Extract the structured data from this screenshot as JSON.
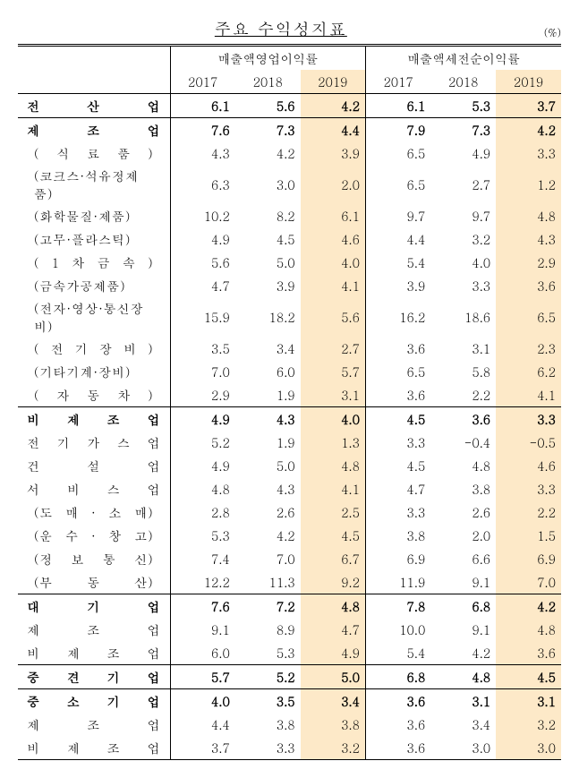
{
  "title": "주요 수익성지표",
  "unit": "(%)",
  "groupHeaders": [
    "매출액영업이익률",
    "매출액세전순이익률"
  ],
  "years": [
    "2017",
    "2018",
    "2019",
    "2017",
    "2018",
    "2019"
  ],
  "rows": [
    {
      "label": "전 산 업",
      "v": [
        "6.1",
        "5.6",
        "4.2",
        "6.1",
        "5.3",
        "3.7"
      ],
      "bold": true,
      "sec": true
    },
    {
      "label": "제 조 업",
      "v": [
        "7.6",
        "7.3",
        "4.4",
        "7.9",
        "7.3",
        "4.2"
      ],
      "bold": true,
      "sec": true
    },
    {
      "label": "( 식 료 품 )",
      "v": [
        "4.3",
        "4.2",
        "3.9",
        "6.5",
        "4.9",
        "3.3"
      ],
      "sub": true
    },
    {
      "label": "(코크스·석유정제품)",
      "v": [
        "6.3",
        "3.0",
        "2.0",
        "6.5",
        "2.7",
        "1.2"
      ],
      "sub": true
    },
    {
      "label": "(화학물질·제품)",
      "v": [
        "10.2",
        "8.2",
        "6.1",
        "9.7",
        "9.7",
        "4.8"
      ],
      "sub": true
    },
    {
      "label": "(고무·플라스틱)",
      "v": [
        "4.9",
        "4.5",
        "4.6",
        "4.4",
        "3.2",
        "4.3"
      ],
      "sub": true
    },
    {
      "label": "( 1 차 금 속 )",
      "v": [
        "5.6",
        "5.0",
        "4.0",
        "5.4",
        "4.0",
        "2.9"
      ],
      "sub": true
    },
    {
      "label": "(금속가공제품)",
      "v": [
        "4.7",
        "3.9",
        "4.1",
        "3.9",
        "3.3",
        "3.6"
      ],
      "sub": true
    },
    {
      "label": "(전자·영상·통신장비)",
      "v": [
        "15.9",
        "18.2",
        "5.6",
        "16.2",
        "18.6",
        "6.5"
      ],
      "sub": true
    },
    {
      "label": "( 전 기 장 비 )",
      "v": [
        "3.5",
        "3.4",
        "2.7",
        "3.6",
        "3.1",
        "2.3"
      ],
      "sub": true
    },
    {
      "label": "(기타기계·장비)",
      "v": [
        "7.0",
        "6.0",
        "5.7",
        "6.5",
        "5.8",
        "6.2"
      ],
      "sub": true
    },
    {
      "label": "( 자 동 차 )",
      "v": [
        "2.9",
        "1.9",
        "3.1",
        "3.6",
        "2.2",
        "4.1"
      ],
      "sub": true
    },
    {
      "label": "비 제 조 업",
      "v": [
        "4.9",
        "4.3",
        "4.0",
        "4.5",
        "3.6",
        "3.3"
      ],
      "bold": true,
      "sec": true
    },
    {
      "label": "전 기 가 스 업",
      "v": [
        "5.2",
        "1.9",
        "1.3",
        "3.3",
        "-0.4",
        "-0.5"
      ]
    },
    {
      "label": "건 설 업",
      "v": [
        "4.9",
        "5.0",
        "4.8",
        "4.5",
        "4.8",
        "4.6"
      ]
    },
    {
      "label": "서 비 스 업",
      "v": [
        "4.8",
        "4.3",
        "4.1",
        "4.7",
        "3.8",
        "3.3"
      ]
    },
    {
      "label": "(도 매 · 소 매)",
      "v": [
        "2.8",
        "2.6",
        "2.5",
        "3.3",
        "2.6",
        "2.2"
      ],
      "sub": true
    },
    {
      "label": "(운 수 · 창 고)",
      "v": [
        "5.3",
        "4.2",
        "4.5",
        "3.8",
        "2.0",
        "1.5"
      ],
      "sub": true
    },
    {
      "label": "(정 보 통 신)",
      "v": [
        "7.4",
        "7.0",
        "6.7",
        "6.9",
        "6.6",
        "6.9"
      ],
      "sub": true
    },
    {
      "label": "(부 동 산)",
      "v": [
        "12.2",
        "11.3",
        "9.2",
        "11.9",
        "9.1",
        "7.0"
      ],
      "sub": true
    },
    {
      "label": "대 기 업",
      "v": [
        "7.6",
        "7.2",
        "4.8",
        "7.8",
        "6.8",
        "4.2"
      ],
      "bold": true,
      "sec": true
    },
    {
      "label": "제 조 업",
      "v": [
        "9.1",
        "8.9",
        "4.7",
        "10.0",
        "9.1",
        "4.8"
      ]
    },
    {
      "label": "비 제 조 업",
      "v": [
        "6.0",
        "5.3",
        "4.9",
        "5.4",
        "4.2",
        "3.6"
      ]
    },
    {
      "label": "중 견 기 업",
      "v": [
        "5.7",
        "5.2",
        "5.0",
        "6.8",
        "4.8",
        "4.5"
      ],
      "bold": true,
      "sec": true
    },
    {
      "label": "중 소 기 업",
      "v": [
        "4.0",
        "3.5",
        "3.4",
        "3.6",
        "3.1",
        "3.1"
      ],
      "bold": true,
      "sec": true
    },
    {
      "label": "제 조 업",
      "v": [
        "4.4",
        "3.8",
        "3.8",
        "3.6",
        "3.4",
        "3.2"
      ]
    },
    {
      "label": "비 제 조 업",
      "v": [
        "3.7",
        "3.3",
        "3.2",
        "3.6",
        "3.0",
        "3.0"
      ]
    }
  ]
}
